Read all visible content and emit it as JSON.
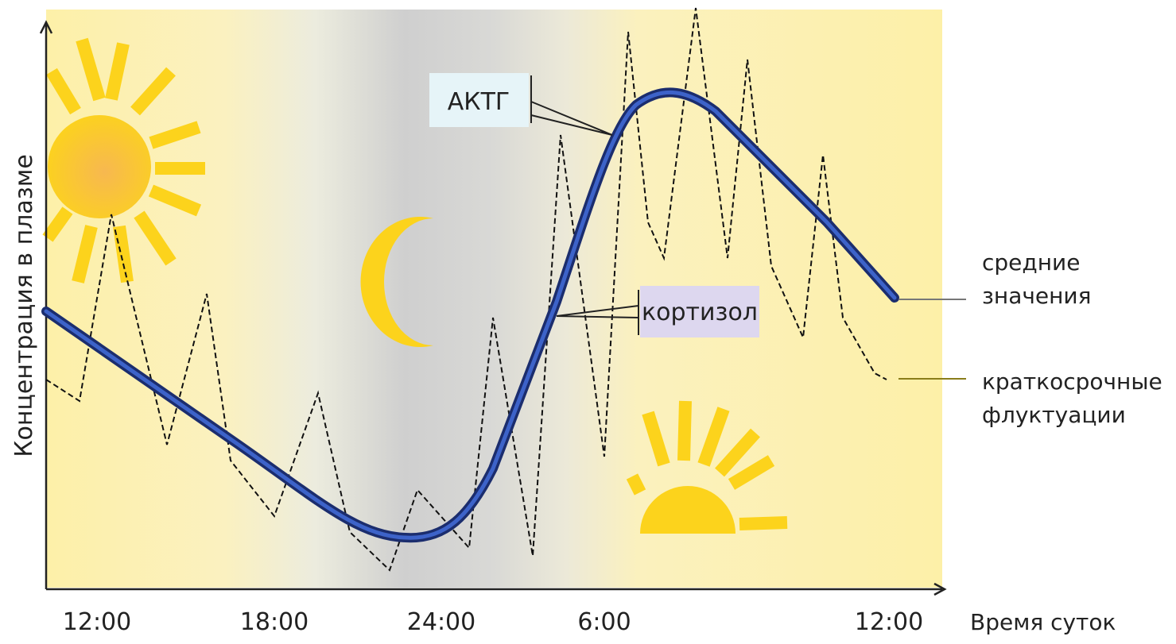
{
  "diagram": {
    "y_axis_label": "Концентрация в плазме",
    "x_axis_label": "Время суток",
    "x_tick_labels": [
      "12:00",
      "18:00",
      "24:00",
      "6:00",
      "12:00"
    ],
    "callouts": [
      "АКТГ",
      "кортизол"
    ],
    "legend": [
      {
        "lines": [
          "средние",
          "значения"
        ]
      },
      {
        "lines": [
          "краткосрочные",
          "флуктуации"
        ]
      }
    ]
  }
}
